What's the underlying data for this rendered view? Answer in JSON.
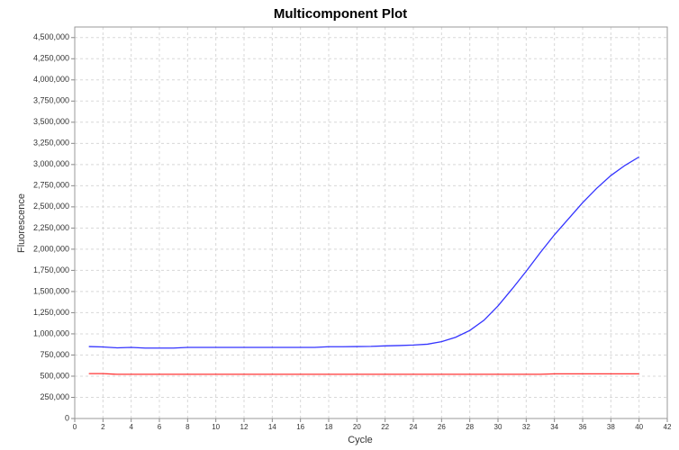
{
  "chart_data": {
    "type": "line",
    "title": "Multicomponent Plot",
    "x_label": "Cycle",
    "y_label": "Fluorescence",
    "x": [
      1,
      2,
      3,
      4,
      5,
      6,
      7,
      8,
      9,
      10,
      11,
      12,
      13,
      14,
      15,
      16,
      17,
      18,
      19,
      20,
      21,
      22,
      23,
      24,
      25,
      26,
      27,
      28,
      29,
      30,
      31,
      32,
      33,
      34,
      35,
      36,
      37,
      38,
      39,
      40
    ],
    "series": [
      {
        "color": "#3333ff",
        "values": [
          850000,
          845000,
          835000,
          840000,
          832000,
          832000,
          832000,
          840000,
          840000,
          840000,
          840000,
          840000,
          840000,
          840000,
          840000,
          840000,
          840000,
          848000,
          848000,
          850000,
          852000,
          858000,
          862000,
          868000,
          878000,
          908000,
          960000,
          1040000,
          1160000,
          1330000,
          1530000,
          1740000,
          1960000,
          2170000,
          2360000,
          2550000,
          2720000,
          2870000,
          2990000,
          3090000
        ]
      },
      {
        "color": "#ff3333",
        "values": [
          530000,
          530000,
          522000,
          522000,
          522000,
          522000,
          522000,
          522000,
          522000,
          522000,
          522000,
          522000,
          522000,
          522000,
          522000,
          522000,
          522000,
          522000,
          522000,
          522000,
          522000,
          522000,
          522000,
          522000,
          522000,
          522000,
          522000,
          522000,
          522000,
          522000,
          522000,
          522000,
          522000,
          528000,
          528000,
          528000,
          528000,
          528000,
          528000,
          528000
        ]
      }
    ],
    "xlim": [
      0,
      42
    ],
    "xticks": [
      0,
      2,
      4,
      6,
      8,
      10,
      12,
      14,
      16,
      18,
      20,
      22,
      24,
      26,
      28,
      30,
      32,
      34,
      36,
      38,
      40,
      42
    ],
    "ylim": [
      0,
      4625000
    ],
    "yticks": [
      0,
      {
        "value": 250000,
        "label": "250,000"
      },
      {
        "value": 500000,
        "label": "500,000"
      },
      {
        "value": 750000,
        "label": "750,000"
      },
      {
        "value": 1000000,
        "label": "1,000,000"
      },
      {
        "value": 1250000,
        "label": "1,250,000"
      },
      {
        "value": 1500000,
        "label": "1,500,000"
      },
      {
        "value": 1750000,
        "label": "1,750,000"
      },
      {
        "value": 2000000,
        "label": "2,000,000"
      },
      {
        "value": 2250000,
        "label": "2,250,000"
      },
      {
        "value": 2500000,
        "label": "2,500,000"
      },
      {
        "value": 2750000,
        "label": "2,750,000"
      },
      {
        "value": 3000000,
        "label": "3,000,000"
      },
      {
        "value": 3250000,
        "label": "3,250,000"
      },
      {
        "value": 3500000,
        "label": "3,500,000"
      },
      {
        "value": 3750000,
        "label": "3,750,000"
      },
      {
        "value": 4000000,
        "label": "4,000,000"
      },
      {
        "value": 4250000,
        "label": "4,250,000"
      },
      {
        "value": 4500000,
        "label": "4,500,000"
      }
    ],
    "grid": true
  }
}
